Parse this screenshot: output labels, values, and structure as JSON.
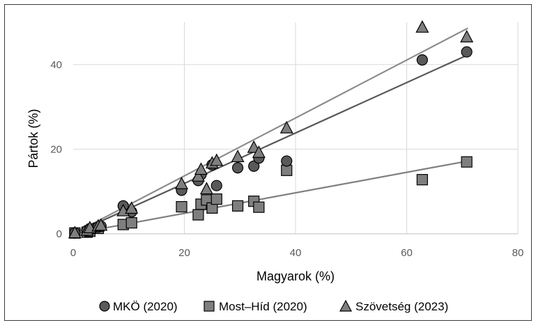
{
  "chart_data": {
    "type": "scatter",
    "title": "",
    "xlabel": "Magyarok (%)",
    "ylabel": "Pártok (%)",
    "xlim": [
      0,
      80
    ],
    "ylim": [
      0,
      50
    ],
    "xticks": [
      "0",
      "20",
      "40",
      "60",
      "80"
    ],
    "yticks": [
      "0",
      "20",
      "40"
    ],
    "grid": true,
    "legend_position": "bottom",
    "series": [
      {
        "name": "MKÖ (2020)",
        "marker": "circle",
        "color": "#595959",
        "line_color": "#595959",
        "points": [
          [
            0.3,
            0.2
          ],
          [
            2.5,
            0.8
          ],
          [
            3,
            1.2
          ],
          [
            4.5,
            1.6
          ],
          [
            5,
            1.8
          ],
          [
            9,
            6.6
          ],
          [
            10.5,
            5.2
          ],
          [
            19.5,
            10.3
          ],
          [
            22.5,
            12.6
          ],
          [
            23,
            14
          ],
          [
            25,
            16.3
          ],
          [
            25.8,
            11.4
          ],
          [
            29.6,
            15.6
          ],
          [
            32.5,
            16
          ],
          [
            33.4,
            17.9
          ],
          [
            38.4,
            17.2
          ],
          [
            62.8,
            41.1
          ],
          [
            70.8,
            43
          ]
        ],
        "trendline": [
          [
            0,
            0
          ],
          [
            71,
            42.3
          ]
        ]
      },
      {
        "name": "Most–Híd (2020)",
        "marker": "square",
        "color": "#7f7f7f",
        "line_color": "#7f7f7f",
        "points": [
          [
            0.3,
            0.2
          ],
          [
            2.5,
            0.4
          ],
          [
            3,
            0.6
          ],
          [
            4.5,
            1.3
          ],
          [
            9,
            2.2
          ],
          [
            10.5,
            2.6
          ],
          [
            19.5,
            6.4
          ],
          [
            22.5,
            4.5
          ],
          [
            23,
            7
          ],
          [
            24,
            8
          ],
          [
            25,
            6.1
          ],
          [
            25.8,
            8.2
          ],
          [
            29.6,
            6.6
          ],
          [
            32.5,
            7.7
          ],
          [
            33.4,
            6.3
          ],
          [
            38.4,
            15
          ],
          [
            62.8,
            12.8
          ],
          [
            70.8,
            17
          ]
        ],
        "trendline": [
          [
            0,
            0
          ],
          [
            71,
            17.2
          ]
        ]
      },
      {
        "name": "Szövetség (2023)",
        "marker": "triangle",
        "color": "#7f7f7f",
        "line_color": "#8c8c8c",
        "points": [
          [
            0.3,
            0.2
          ],
          [
            2.5,
            0.8
          ],
          [
            3,
            1.4
          ],
          [
            4.5,
            1.8
          ],
          [
            5,
            2
          ],
          [
            9,
            5.4
          ],
          [
            10.5,
            6
          ],
          [
            19.5,
            11.8
          ],
          [
            22.5,
            13.6
          ],
          [
            23,
            15.2
          ],
          [
            24,
            10.6
          ],
          [
            25,
            16.7
          ],
          [
            25.8,
            17.3
          ],
          [
            29.6,
            18.2
          ],
          [
            32.5,
            20.4
          ],
          [
            33.4,
            19.2
          ],
          [
            38.4,
            25
          ],
          [
            62.8,
            48.8
          ],
          [
            70.8,
            46.5
          ]
        ],
        "trendline": [
          [
            0,
            0
          ],
          [
            71,
            48.6
          ]
        ]
      }
    ]
  }
}
